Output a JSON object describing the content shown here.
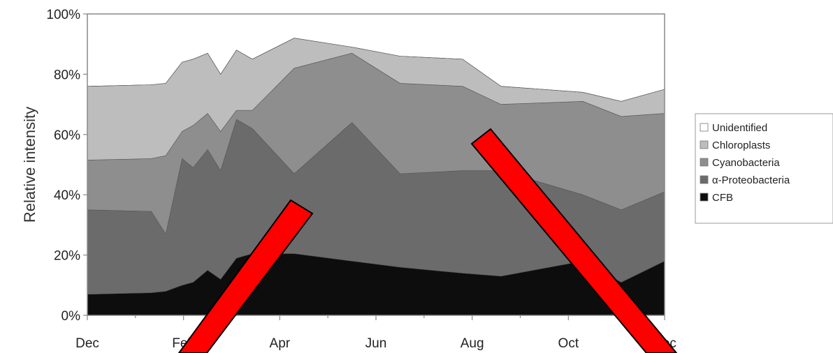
{
  "chart_data": {
    "type": "area",
    "stacked": true,
    "ylabel": "Relative intensity",
    "xlabel": "",
    "x_tick_labels": [
      "Dec",
      "Feb",
      "Apr",
      "Jun",
      "Aug",
      "Oct",
      "Dec"
    ],
    "y_tick_labels": [
      "0%",
      "20%",
      "40%",
      "60%",
      "80%",
      "100%"
    ],
    "ylim": [
      0,
      100
    ],
    "grid": false,
    "legend_position": "right",
    "x_months": [
      0,
      1.33,
      1.63,
      1.97,
      2.2,
      2.5,
      2.77,
      3.1,
      3.43,
      4.3,
      5.5,
      6.5,
      7.8,
      8.6,
      10.3,
      11.1,
      12.6
    ],
    "series": [
      {
        "name": "CFB",
        "color": "#0d0d0d",
        "values": [
          7,
          7.5,
          8,
          10,
          11,
          15,
          12,
          19,
          20.5,
          20.5,
          18,
          16,
          14,
          13,
          18,
          11,
          18
        ]
      },
      {
        "name": "α-Proteobacteria",
        "color": "#6b6b6b",
        "values": [
          35,
          34.5,
          27,
          52,
          49,
          55,
          48,
          65,
          62,
          47,
          64,
          47,
          48,
          48,
          40,
          35,
          41
        ]
      },
      {
        "name": "Cyanobacteria",
        "color": "#8e8e8e",
        "values": [
          51.5,
          52,
          53,
          61,
          63,
          67,
          61,
          68,
          68,
          82,
          87,
          77,
          76,
          70,
          71,
          66,
          67
        ]
      },
      {
        "name": "Chloroplasts",
        "color": "#bdbdbd",
        "values": [
          76,
          76.5,
          77,
          84,
          85,
          87,
          80,
          88,
          85,
          92,
          89,
          86,
          85,
          76,
          74,
          71,
          75
        ]
      },
      {
        "name": "Unidentified",
        "color": "#ffffff",
        "values": [
          76,
          76.5,
          77,
          84,
          85,
          87,
          80,
          88,
          85,
          92,
          89,
          86,
          85,
          76,
          74,
          71,
          75
        ]
      }
    ],
    "legend_order": [
      "Unidentified",
      "Chloroplasts",
      "Cyanobacteria",
      "α-Proteobacteria",
      "CFB"
    ]
  },
  "overlay": {
    "mark_color": "#ff0000"
  }
}
